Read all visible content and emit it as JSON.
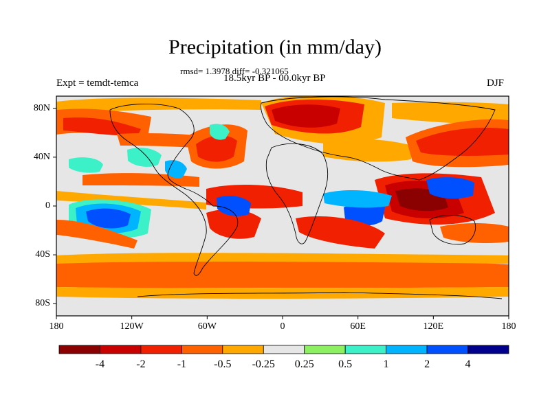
{
  "title": "Precipitation (in mm/day)",
  "stats_line": "rmsd= 1.3978 diff= -0.321065",
  "period": "18.5kyr BP - 00.0kyr BP",
  "experiment": "Expt = temdt-temca",
  "season": "DJF",
  "map": {
    "lat_labels": [
      {
        "text": "80N",
        "value": 80
      },
      {
        "text": "40N",
        "value": 40
      },
      {
        "text": "0",
        "value": 0
      },
      {
        "text": "40S",
        "value": -40
      },
      {
        "text": "80S",
        "value": -80
      }
    ],
    "lon_labels": [
      {
        "text": "180",
        "value": -180
      },
      {
        "text": "120W",
        "value": -120
      },
      {
        "text": "60W",
        "value": -60
      },
      {
        "text": "0",
        "value": 0
      },
      {
        "text": "60E",
        "value": 60
      },
      {
        "text": "120E",
        "value": 120
      },
      {
        "text": "180",
        "value": 180
      }
    ]
  },
  "colorbar": {
    "colors": [
      "#8b0000",
      "#c80000",
      "#f02000",
      "#ff6000",
      "#ffa800",
      "#e6e6e6",
      "#8cf060",
      "#3cf0c8",
      "#00b4ff",
      "#0050ff",
      "#00008c"
    ],
    "labels": [
      "-4",
      "-2",
      "-1",
      "-0.5",
      "-0.25",
      "0.25",
      "0.5",
      "1",
      "2",
      "4"
    ]
  }
}
